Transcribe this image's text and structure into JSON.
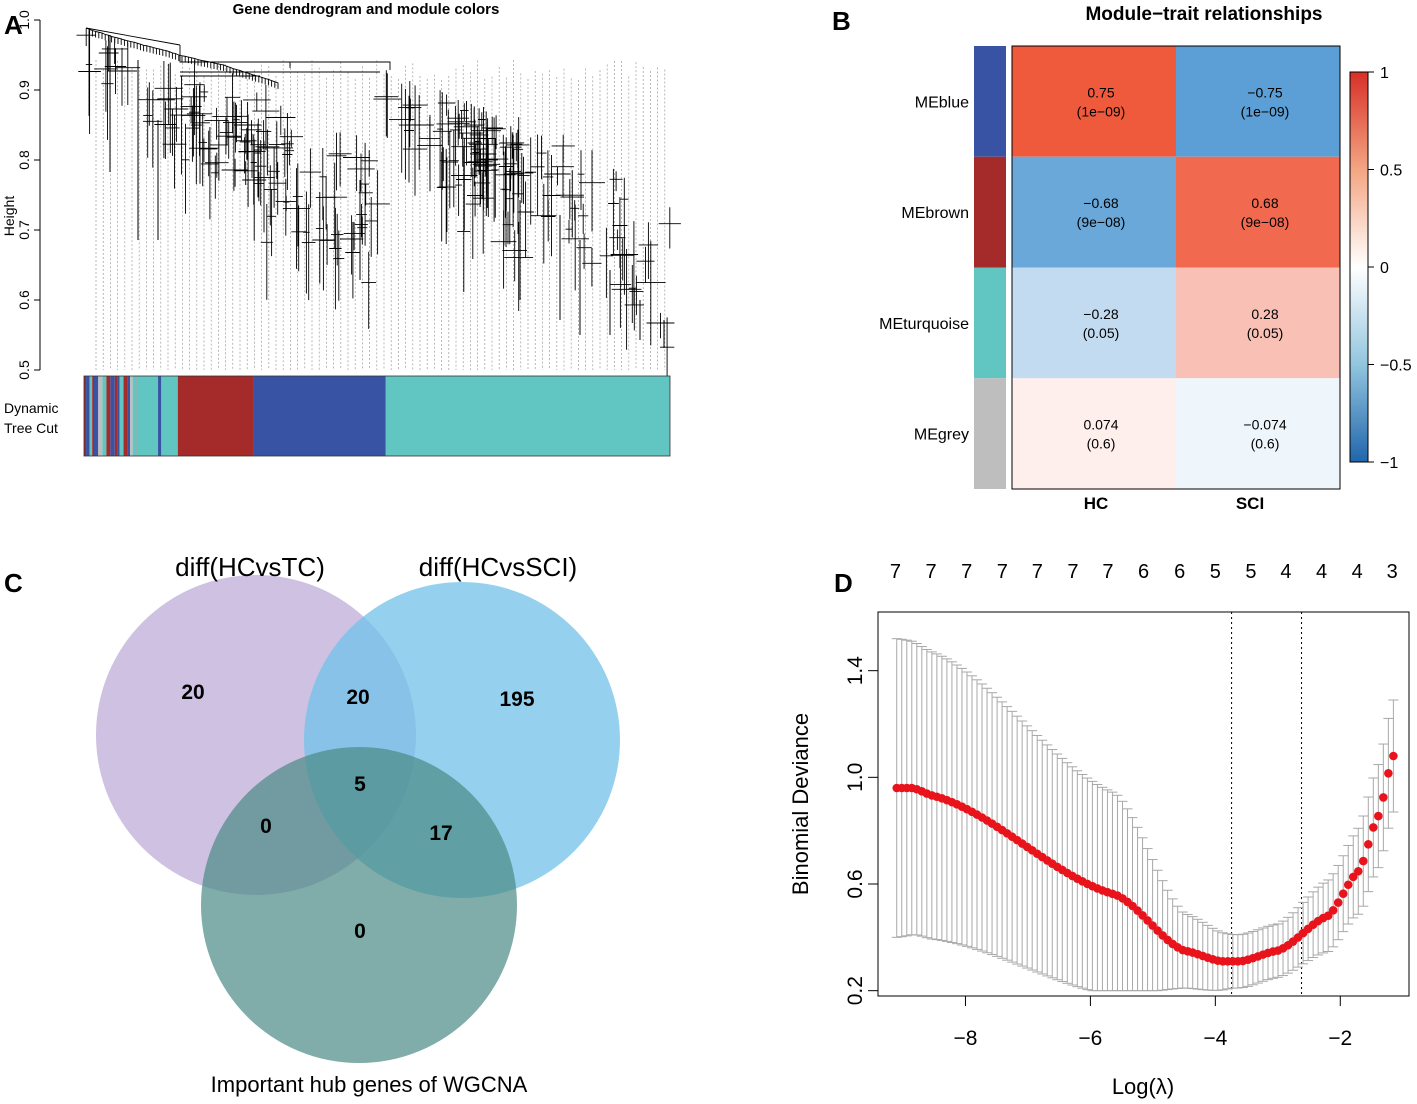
{
  "chart_data": [
    {
      "panel": "A",
      "type": "dendrogram",
      "title": "Gene dendrogram and module colors",
      "ylabel": "Height",
      "ylim": [
        0.5,
        1.0
      ],
      "yticks": [
        "0.5",
        "0.6",
        "0.7",
        "0.8",
        "0.9",
        "1.0"
      ],
      "color_bar_label": [
        "Dynamic",
        "Tree Cut"
      ],
      "segments": [
        {
          "module": "mixed",
          "fraction": 0.09
        },
        {
          "module": "turquoise",
          "fraction": 0.07
        },
        {
          "module": "brown",
          "fraction": 0.13
        },
        {
          "module": "blue",
          "fraction": 0.225
        },
        {
          "module": "turquoise",
          "fraction": 0.485
        }
      ],
      "colors": {
        "turquoise": "#61c6c1",
        "blue": "#3953a4",
        "brown": "#a52a2a",
        "grey": "#bebebe"
      }
    },
    {
      "panel": "B",
      "type": "heatmap",
      "title": "Module−trait relationships",
      "columns": [
        "HC",
        "SCI"
      ],
      "rows": [
        "MEblue",
        "MEbrown",
        "MEturquoise",
        "MEgrey"
      ],
      "row_colors": [
        "#3953a4",
        "#a52a2a",
        "#61c6c1",
        "#bebebe"
      ],
      "values": [
        [
          0.75,
          -0.75
        ],
        [
          -0.68,
          0.68
        ],
        [
          -0.28,
          0.28
        ],
        [
          0.074,
          -0.074
        ]
      ],
      "labels": [
        [
          "0.75",
          "−0.75"
        ],
        [
          "−0.68",
          "0.68"
        ],
        [
          "−0.28",
          "0.28"
        ],
        [
          "0.074",
          "−0.074"
        ]
      ],
      "pvalues": [
        [
          "(1e−09)",
          "(1e−09)"
        ],
        [
          "(9e−08)",
          "(9e−08)"
        ],
        [
          "(0.05)",
          "(0.05)"
        ],
        [
          "(0.6)",
          "(0.6)"
        ]
      ],
      "legend_range": [
        -1,
        1
      ],
      "legend_ticks": [
        "1",
        "0.5",
        "0",
        "−0.5",
        "−1"
      ]
    },
    {
      "panel": "C",
      "type": "venn",
      "sets": [
        "diff(HCvsTC)",
        "diff(HCvsSCI)",
        "Important hub genes of WGCNA"
      ],
      "set_colors": [
        "#b9a6d5",
        "#72c2ea",
        "#4a8a84"
      ],
      "regions": [
        {
          "sets": [
            "diff(HCvsTC)"
          ],
          "value": "20"
        },
        {
          "sets": [
            "diff(HCvsTC)",
            "diff(HCvsSCI)"
          ],
          "value": "20"
        },
        {
          "sets": [
            "diff(HCvsSCI)"
          ],
          "value": "195"
        },
        {
          "sets": [
            "diff(HCvsTC)",
            "diff(HCvsSCI)",
            "Important hub genes of WGCNA"
          ],
          "value": "5"
        },
        {
          "sets": [
            "diff(HCvsTC)",
            "Important hub genes of WGCNA"
          ],
          "value": "0"
        },
        {
          "sets": [
            "diff(HCvsSCI)",
            "Important hub genes of WGCNA"
          ],
          "value": "17"
        },
        {
          "sets": [
            "Important hub genes of WGCNA"
          ],
          "value": "0"
        }
      ]
    },
    {
      "panel": "D",
      "type": "scatter",
      "xlabel": "Log(λ)",
      "ylabel": "Binomial Deviance",
      "xlim": [
        -9.4,
        -0.9
      ],
      "ylim": [
        0.18,
        1.62
      ],
      "xticks": [
        "−8",
        "−6",
        "−4",
        "−2"
      ],
      "xtick_values": [
        -8,
        -6,
        -4,
        -2
      ],
      "yticks": [
        "0.2",
        "0.6",
        "1.0",
        "1.4"
      ],
      "ytick_values": [
        0.2,
        0.6,
        1.0,
        1.4
      ],
      "top_counts": [
        "7",
        "7",
        "7",
        "7",
        "7",
        "7",
        "7",
        "6",
        "6",
        "5",
        "5",
        "4",
        "4",
        "4",
        "3"
      ],
      "top_count_x": [
        -9.12,
        -8.55,
        -7.98,
        -7.41,
        -6.85,
        -6.28,
        -5.72,
        -5.15,
        -4.57,
        -4.0,
        -3.43,
        -2.87,
        -2.3,
        -1.73,
        -1.17
      ],
      "lambda_min": -3.74,
      "lambda_1se": -2.62,
      "curve": {
        "x_start": -9.1,
        "x_end": -1.15,
        "points": 100,
        "profile": [
          [
            -9.1,
            0.96
          ],
          [
            -8.85,
            0.96
          ],
          [
            -8.5,
            0.93
          ],
          [
            -5.6,
            0.56
          ],
          [
            -4.5,
            0.35
          ],
          [
            -3.9,
            0.31
          ],
          [
            -3.6,
            0.31
          ],
          [
            -3.0,
            0.35
          ],
          [
            -2.2,
            0.48
          ],
          [
            -1.7,
            0.65
          ],
          [
            -1.4,
            0.85
          ],
          [
            -1.15,
            1.08
          ]
        ],
        "error_width": [
          [
            -9.1,
            0.56
          ],
          [
            -8.6,
            0.54
          ],
          [
            -5.6,
            0.38
          ],
          [
            -4.5,
            0.14
          ],
          [
            -3.7,
            0.1
          ],
          [
            -3.0,
            0.1
          ],
          [
            -2.0,
            0.14
          ],
          [
            -1.15,
            0.21
          ]
        ]
      }
    }
  ],
  "panels": {
    "a": "A",
    "b": "B",
    "c": "C",
    "d": "D"
  }
}
